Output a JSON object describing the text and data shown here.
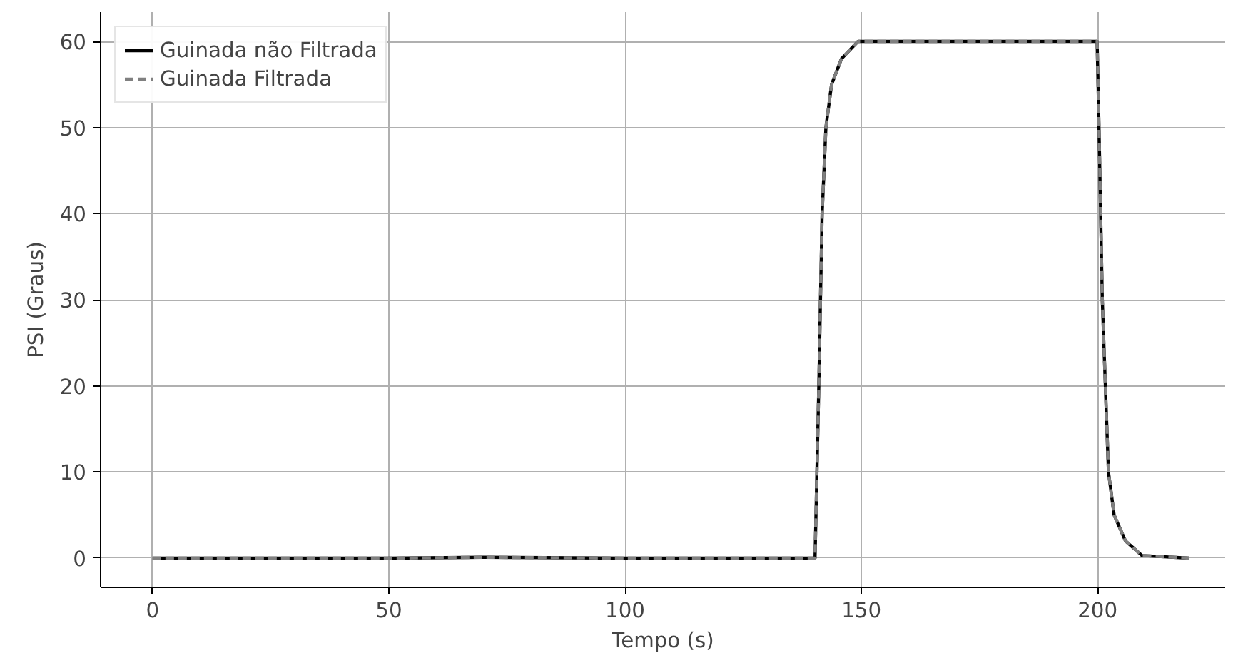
{
  "chart_data": {
    "type": "line",
    "xlabel": "Tempo (s)",
    "ylabel": "PSI (Graus)",
    "xlim": [
      -11,
      227
    ],
    "ylim": [
      -3.4,
      63.4
    ],
    "xticks": [
      0,
      50,
      100,
      150,
      200
    ],
    "yticks": [
      0,
      10,
      20,
      30,
      40,
      50,
      60
    ],
    "grid": true,
    "legend": "top left",
    "series": [
      {
        "name": "Guinada não Filtrada",
        "color": "#000000",
        "line_style": "solid",
        "x": [
          0,
          50,
          70,
          100,
          140,
          140.2,
          141,
          141.7,
          142.5,
          143.7,
          145.8,
          149.3,
          160,
          199.9,
          200.3,
          201,
          202.3,
          203.5,
          205.9,
          209.4,
          219.4
        ],
        "values": [
          0,
          0,
          0.1,
          0,
          0,
          0,
          20,
          40,
          50,
          55,
          58,
          60,
          60,
          60,
          50,
          30,
          10,
          5,
          2,
          0.3,
          0
        ]
      },
      {
        "name": "Guinada Filtrada",
        "color": "#808080",
        "line_style": "dashed",
        "x": [
          0,
          50,
          70,
          100,
          140,
          140.2,
          141,
          141.7,
          142.5,
          143.7,
          145.8,
          149.3,
          160,
          199.9,
          200.3,
          201,
          202.3,
          203.5,
          205.9,
          209.4,
          219.4
        ],
        "values": [
          0,
          0,
          0.1,
          0,
          0,
          0,
          20,
          40,
          50,
          55,
          58,
          60,
          60,
          60,
          50,
          30,
          10,
          5,
          2,
          0.3,
          0
        ]
      }
    ]
  }
}
